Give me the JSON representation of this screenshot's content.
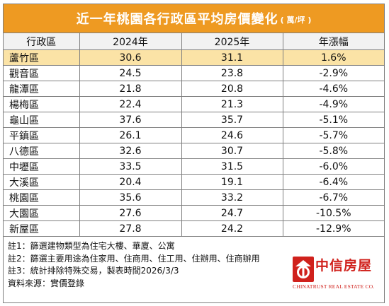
{
  "title": {
    "main": "近一年桃園各行政區平均房價變化",
    "unit": "( 萬/坪 )"
  },
  "columns": [
    "行政區",
    "2024年",
    "2025年",
    "年漲幅"
  ],
  "rows": [
    {
      "district": "蘆竹區",
      "y2024": "30.6",
      "y2025": "31.1",
      "change": "1.6%"
    },
    {
      "district": "觀音區",
      "y2024": "24.5",
      "y2025": "23.8",
      "change": "-2.9%"
    },
    {
      "district": "龍潭區",
      "y2024": "21.8",
      "y2025": "20.8",
      "change": "-4.6%"
    },
    {
      "district": "楊梅區",
      "y2024": "22.4",
      "y2025": "21.3",
      "change": "-4.9%"
    },
    {
      "district": "龜山區",
      "y2024": "37.6",
      "y2025": "35.7",
      "change": "-5.1%"
    },
    {
      "district": "平鎮區",
      "y2024": "26.1",
      "y2025": "24.6",
      "change": "-5.7%"
    },
    {
      "district": "八德區",
      "y2024": "32.6",
      "y2025": "30.7",
      "change": "-5.8%"
    },
    {
      "district": "中壢區",
      "y2024": "33.5",
      "y2025": "31.5",
      "change": "-6.0%"
    },
    {
      "district": "大溪區",
      "y2024": "20.4",
      "y2025": "19.1",
      "change": "-6.4%"
    },
    {
      "district": "桃園區",
      "y2024": "35.6",
      "y2025": "33.2",
      "change": "-6.7%"
    },
    {
      "district": "大園區",
      "y2024": "27.6",
      "y2025": "24.7",
      "change": "-10.5%"
    },
    {
      "district": "新屋區",
      "y2024": "27.8",
      "y2025": "24.2",
      "change": "-12.9%"
    }
  ],
  "highlight_row": 0,
  "notes": [
    "註1：篩選建物類型為住宅大樓、華廈、公寓",
    "註2：篩選主要用途為住家用、住商用、住工用、住辦用、住商辦用",
    "註3：統計排除特殊交易，製表時間2026/3/3",
    "資料來源：實價登錄"
  ],
  "logo": {
    "cn": "中信房屋",
    "en": "CHINATRUST REAL ESTATE CO."
  },
  "colors": {
    "title_bg": "#ee9a22",
    "highlight": "#fbe3a6",
    "header_bg": "#f2f2f2",
    "brand_red": "#d0211c"
  }
}
